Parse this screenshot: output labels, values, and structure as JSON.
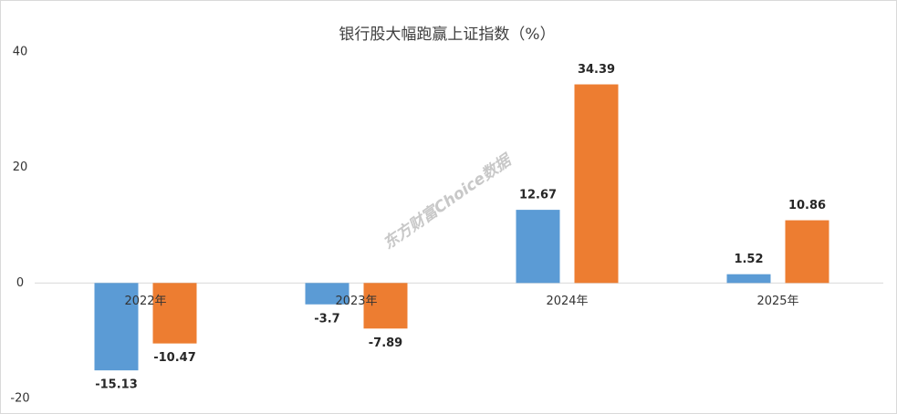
{
  "chart_data": {
    "type": "bar",
    "title": "银行股大幅跑赢上证指数（%）",
    "watermark": "东方财富Choice数据",
    "categories": [
      "2022年",
      "2023年",
      "2024年",
      "2025年"
    ],
    "series": [
      {
        "color": "#5b9bd5",
        "values": [
          -15.13,
          -3.7,
          12.67,
          1.52
        ]
      },
      {
        "color": "#ed7d31",
        "values": [
          -10.47,
          -7.89,
          34.39,
          10.86
        ]
      }
    ],
    "ylim": [
      -20,
      40
    ],
    "yticks": [
      -20,
      0,
      20,
      40
    ],
    "grid": false
  }
}
